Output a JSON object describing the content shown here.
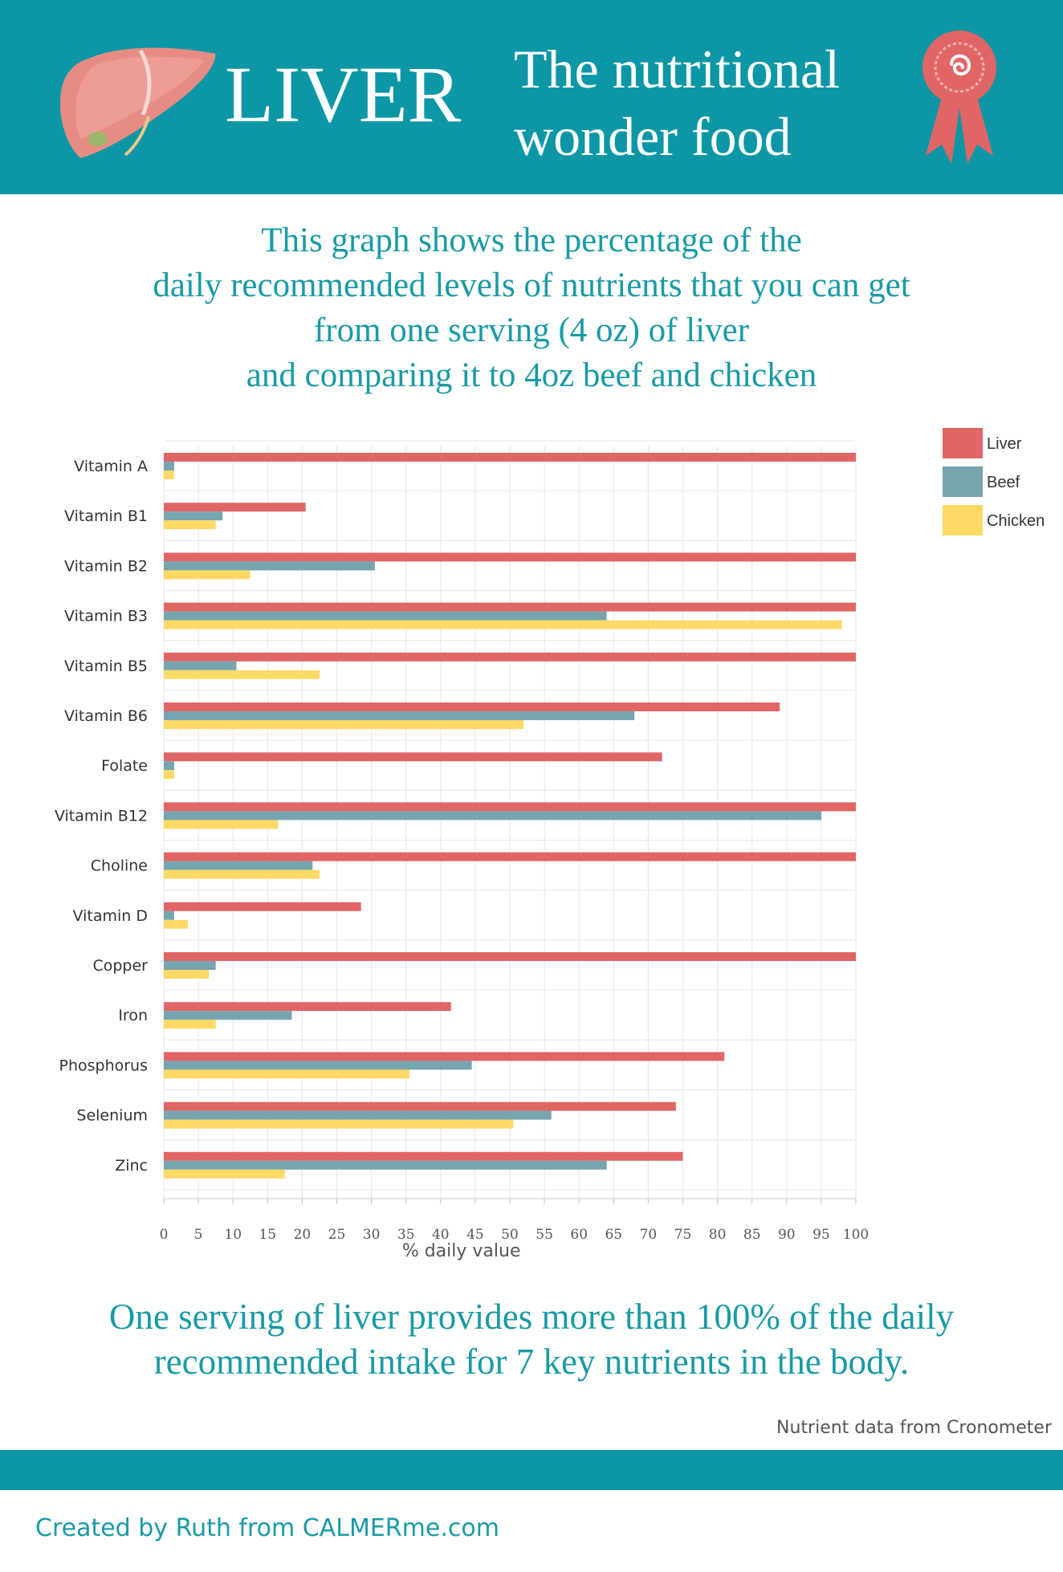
{
  "header": {
    "title": "LIVER",
    "subtitle_line1": "The nutritional",
    "subtitle_line2": "wonder food",
    "liver_icon": "liver-illustration",
    "ribbon_icon": "award-ribbon-icon",
    "background_color": "#0d97a6"
  },
  "intro": {
    "line1": "This graph shows the percentage of the",
    "line2": "daily recommended levels of nutrients that you can get",
    "line3": "from one serving (4 oz) of liver",
    "line4": "and comparing it to 4oz beef and chicken"
  },
  "chart_data": {
    "type": "bar",
    "orientation": "horizontal",
    "xlabel": "% daily value",
    "xlim": [
      0,
      100
    ],
    "xticks": [
      0,
      5,
      10,
      15,
      20,
      25,
      30,
      35,
      40,
      45,
      50,
      55,
      60,
      65,
      70,
      75,
      80,
      85,
      90,
      95,
      100
    ],
    "grid": true,
    "legend_position": "top-right",
    "categories": [
      "Vitamin A",
      "Vitamin B1",
      "Vitamin B2",
      "Vitamin B3",
      "Vitamin B5",
      "Vitamin B6",
      "Folate",
      "Vitamin B12",
      "Choline",
      "Vitamin D",
      "Copper",
      "Iron",
      "Phosphorus",
      "Selenium",
      "Zinc"
    ],
    "series": [
      {
        "name": "Liver",
        "color": "#e06666",
        "values": [
          100,
          20.5,
          100,
          100,
          100,
          89,
          72,
          100,
          100,
          28.5,
          100,
          41.5,
          81,
          74,
          75
        ]
      },
      {
        "name": "Beef",
        "color": "#76a5af",
        "values": [
          1.5,
          8.5,
          30.5,
          64,
          10.5,
          68,
          1.5,
          95,
          21.5,
          1.5,
          7.5,
          18.5,
          44.5,
          56,
          64
        ]
      },
      {
        "name": "Chicken",
        "color": "#ffd966",
        "values": [
          1.5,
          7.5,
          12.5,
          98,
          22.5,
          52,
          1.5,
          16.5,
          22.5,
          3.5,
          6.5,
          7.5,
          35.5,
          50.5,
          17.5
        ]
      }
    ]
  },
  "conclusion": {
    "line1": "One serving of liver provides more than 100% of the daily",
    "line2": "recommended intake for 7 key nutrients in the body."
  },
  "source": "Nutrient data from Cronometer",
  "footer": {
    "credit": "Created by Ruth from CALMERme.com",
    "band_color": "#0d97a6"
  }
}
